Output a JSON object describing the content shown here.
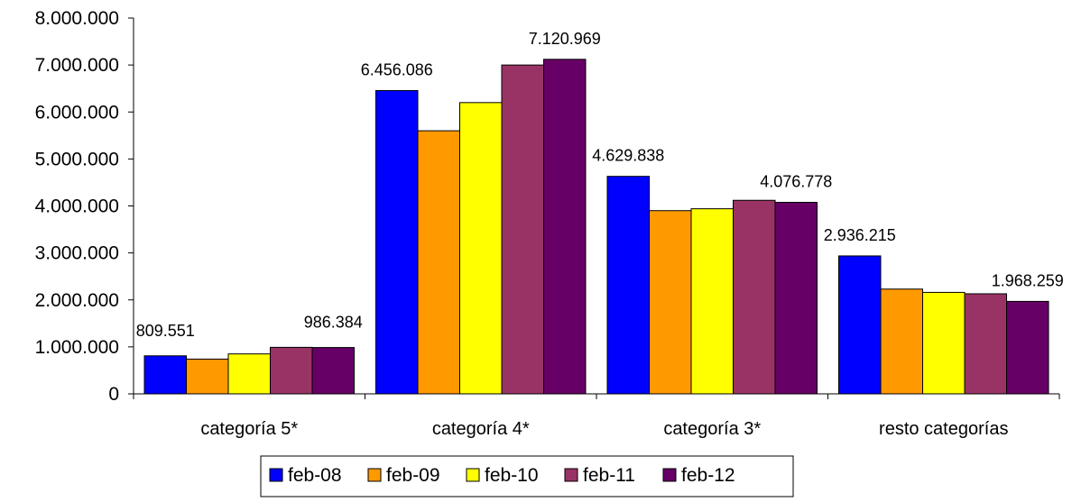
{
  "chart_data": {
    "type": "bar",
    "title": "",
    "xlabel": "",
    "ylabel": "",
    "ylim": [
      0,
      8000000
    ],
    "yticks": [
      0,
      1000000,
      2000000,
      3000000,
      4000000,
      5000000,
      6000000,
      7000000,
      8000000
    ],
    "ytick_labels": [
      "0",
      "1.000.000",
      "2.000.000",
      "3.000.000",
      "4.000.000",
      "5.000.000",
      "6.000.000",
      "7.000.000",
      "8.000.000"
    ],
    "grid": false,
    "legend_position": "bottom",
    "categories": [
      "categoría 5*",
      "categoría 4*",
      "categoría 3*",
      "resto categorías"
    ],
    "series": [
      {
        "name": "feb-08",
        "color": "#0000FF",
        "values": [
          809551,
          6456086,
          4629838,
          2936215
        ],
        "labels": [
          "809.551",
          "6.456.086",
          "4.629.838",
          "2.936.215"
        ]
      },
      {
        "name": "feb-09",
        "color": "#FF9900",
        "values": [
          740000,
          5600000,
          3900000,
          2230000
        ],
        "labels": [
          null,
          null,
          null,
          null
        ]
      },
      {
        "name": "feb-10",
        "color": "#FFFF00",
        "values": [
          850000,
          6200000,
          3940000,
          2160000
        ],
        "labels": [
          null,
          null,
          null,
          null
        ]
      },
      {
        "name": "feb-11",
        "color": "#993366",
        "values": [
          990000,
          7000000,
          4120000,
          2130000
        ],
        "labels": [
          null,
          null,
          null,
          null
        ]
      },
      {
        "name": "feb-12",
        "color": "#660066",
        "values": [
          986384,
          7120969,
          4076778,
          1968259
        ],
        "labels": [
          "986.384",
          "7.120.969",
          "4.076.778",
          "1.968.259"
        ]
      }
    ]
  }
}
